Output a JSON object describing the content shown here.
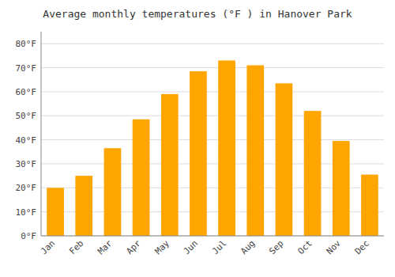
{
  "chart_data": {
    "type": "bar",
    "title": "Average monthly temperatures (°F ) in Hanover Park",
    "categories": [
      "Jan",
      "Feb",
      "Mar",
      "Apr",
      "May",
      "Jun",
      "Jul",
      "Aug",
      "Sep",
      "Oct",
      "Nov",
      "Dec"
    ],
    "values": [
      20,
      25,
      36.5,
      48.5,
      59,
      68.5,
      73,
      71,
      63.5,
      52,
      39.5,
      25.5
    ],
    "color": "#FFA500",
    "ylim": [
      0,
      85
    ],
    "yticks": [
      {
        "value": 0,
        "label": "0°F"
      },
      {
        "value": 10,
        "label": "10°F"
      },
      {
        "value": 20,
        "label": "20°F"
      },
      {
        "value": 30,
        "label": "30°F"
      },
      {
        "value": 40,
        "label": "40°F"
      },
      {
        "value": 50,
        "label": "50°F"
      },
      {
        "value": 60,
        "label": "60°F"
      },
      {
        "value": 70,
        "label": "70°F"
      },
      {
        "value": 80,
        "label": "80°F"
      }
    ],
    "grid": true
  }
}
